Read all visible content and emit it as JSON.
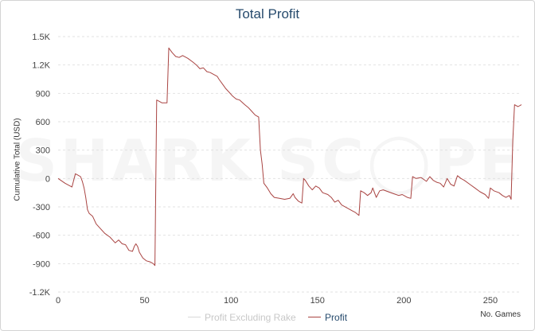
{
  "chart_data": {
    "type": "line",
    "title": "Total Profit",
    "ylabel": "Cumulative Total (USD)",
    "xlabel": "No. Games",
    "xlim": [
      0,
      268
    ],
    "ylim": [
      -1200,
      1500
    ],
    "x_ticks": [
      0,
      50,
      100,
      150,
      200,
      250
    ],
    "y_ticks": [
      {
        "value": 1500,
        "label": "1.5K"
      },
      {
        "value": 1200,
        "label": "1.2K"
      },
      {
        "value": 900,
        "label": "900"
      },
      {
        "value": 600,
        "label": "600"
      },
      {
        "value": 300,
        "label": "300"
      },
      {
        "value": 0,
        "label": "0"
      },
      {
        "value": -300,
        "label": "-300"
      },
      {
        "value": -600,
        "label": "-600"
      },
      {
        "value": -900,
        "label": "-900"
      },
      {
        "value": -1200,
        "label": "-1.2K"
      }
    ],
    "grid": true,
    "legend_position": "bottom",
    "series": [
      {
        "name": "Profit Excluding Rake",
        "color": "#d9d9d9",
        "values": []
      },
      {
        "name": "Profit",
        "color": "#a94442",
        "points": [
          [
            0,
            0
          ],
          [
            4,
            -50
          ],
          [
            7,
            -80
          ],
          [
            8,
            -90
          ],
          [
            9,
            -20
          ],
          [
            10,
            50
          ],
          [
            11,
            40
          ],
          [
            12,
            30
          ],
          [
            13,
            20
          ],
          [
            14,
            -30
          ],
          [
            15,
            -100
          ],
          [
            16,
            -200
          ],
          [
            17,
            -330
          ],
          [
            18,
            -370
          ],
          [
            20,
            -400
          ],
          [
            22,
            -480
          ],
          [
            24,
            -520
          ],
          [
            27,
            -580
          ],
          [
            30,
            -620
          ],
          [
            33,
            -680
          ],
          [
            35,
            -650
          ],
          [
            37,
            -690
          ],
          [
            39,
            -700
          ],
          [
            41,
            -760
          ],
          [
            43,
            -770
          ],
          [
            44,
            -720
          ],
          [
            45,
            -690
          ],
          [
            46,
            -720
          ],
          [
            47,
            -780
          ],
          [
            49,
            -840
          ],
          [
            51,
            -870
          ],
          [
            53,
            -880
          ],
          [
            54,
            -890
          ],
          [
            55,
            -900
          ],
          [
            56,
            -920
          ],
          [
            57,
            830
          ],
          [
            58,
            820
          ],
          [
            60,
            800
          ],
          [
            63,
            800
          ],
          [
            64,
            1380
          ],
          [
            66,
            1330
          ],
          [
            68,
            1290
          ],
          [
            70,
            1280
          ],
          [
            72,
            1300
          ],
          [
            75,
            1270
          ],
          [
            78,
            1230
          ],
          [
            80,
            1200
          ],
          [
            82,
            1160
          ],
          [
            84,
            1170
          ],
          [
            86,
            1130
          ],
          [
            88,
            1120
          ],
          [
            90,
            1100
          ],
          [
            92,
            1080
          ],
          [
            93,
            1050
          ],
          [
            95,
            1000
          ],
          [
            97,
            950
          ],
          [
            99,
            910
          ],
          [
            101,
            870
          ],
          [
            103,
            840
          ],
          [
            105,
            830
          ],
          [
            108,
            780
          ],
          [
            110,
            750
          ],
          [
            112,
            710
          ],
          [
            114,
            670
          ],
          [
            116,
            650
          ],
          [
            117,
            300
          ],
          [
            118,
            150
          ],
          [
            119,
            -50
          ],
          [
            121,
            -100
          ],
          [
            123,
            -160
          ],
          [
            125,
            -200
          ],
          [
            128,
            -210
          ],
          [
            131,
            -220
          ],
          [
            134,
            -210
          ],
          [
            136,
            -160
          ],
          [
            137,
            -200
          ],
          [
            139,
            -240
          ],
          [
            141,
            -260
          ],
          [
            142,
            0
          ],
          [
            143,
            -20
          ],
          [
            145,
            -80
          ],
          [
            147,
            -120
          ],
          [
            149,
            -80
          ],
          [
            151,
            -100
          ],
          [
            153,
            -150
          ],
          [
            156,
            -170
          ],
          [
            158,
            -200
          ],
          [
            160,
            -250
          ],
          [
            162,
            -230
          ],
          [
            164,
            -280
          ],
          [
            167,
            -310
          ],
          [
            170,
            -340
          ],
          [
            172,
            -360
          ],
          [
            174,
            -390
          ],
          [
            175,
            -130
          ],
          [
            177,
            -150
          ],
          [
            179,
            -180
          ],
          [
            181,
            -150
          ],
          [
            182,
            -100
          ],
          [
            184,
            -200
          ],
          [
            186,
            -130
          ],
          [
            188,
            -120
          ],
          [
            191,
            -140
          ],
          [
            194,
            -160
          ],
          [
            197,
            -180
          ],
          [
            199,
            -170
          ],
          [
            202,
            -200
          ],
          [
            204,
            -210
          ],
          [
            205,
            20
          ],
          [
            207,
            0
          ],
          [
            210,
            10
          ],
          [
            213,
            -30
          ],
          [
            215,
            20
          ],
          [
            217,
            -20
          ],
          [
            219,
            -40
          ],
          [
            221,
            -50
          ],
          [
            223,
            -90
          ],
          [
            225,
            0
          ],
          [
            227,
            -60
          ],
          [
            229,
            -80
          ],
          [
            231,
            30
          ],
          [
            233,
            0
          ],
          [
            235,
            -20
          ],
          [
            238,
            -60
          ],
          [
            241,
            -100
          ],
          [
            244,
            -140
          ],
          [
            247,
            -170
          ],
          [
            249,
            -210
          ],
          [
            250,
            -100
          ],
          [
            252,
            -130
          ],
          [
            255,
            -150
          ],
          [
            257,
            -180
          ],
          [
            259,
            -200
          ],
          [
            261,
            -180
          ],
          [
            262,
            -220
          ],
          [
            263,
            400
          ],
          [
            264,
            780
          ],
          [
            265,
            770
          ],
          [
            266,
            760
          ],
          [
            268,
            780
          ]
        ]
      }
    ]
  }
}
